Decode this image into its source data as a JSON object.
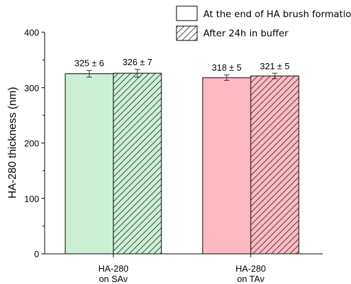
{
  "chart_data": {
    "type": "bar",
    "title": "",
    "xlabel": "",
    "ylabel": "HA-280 thickness (nm)",
    "ylim": [
      0,
      400
    ],
    "yticks": [
      "0",
      "100",
      "200",
      "300",
      "400"
    ],
    "grid": false,
    "legend_placement": "top-right",
    "categories": [
      {
        "line1": "HA-280",
        "line2": "on SAv"
      },
      {
        "line1": "HA-280",
        "line2": "on TAv"
      }
    ],
    "series": [
      {
        "name": "At the end of HA brush formation",
        "pattern": "solid",
        "values": [
          325,
          318
        ],
        "errors": [
          6,
          5
        ],
        "labels": [
          "325 ± 6",
          "318 ± 5"
        ]
      },
      {
        "name": "After 24h in buffer",
        "pattern": "hatched",
        "values": [
          326,
          321
        ],
        "errors": [
          7,
          5
        ],
        "labels": [
          "326 ± 7",
          "321 ± 5"
        ]
      }
    ],
    "category_colors": [
      "#ccf0d4",
      "#ffb9c3"
    ]
  }
}
